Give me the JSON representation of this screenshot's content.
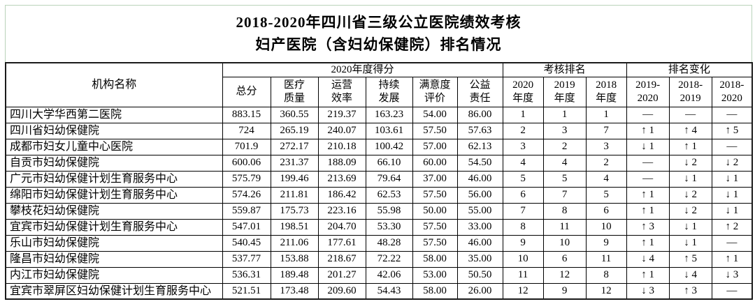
{
  "title": {
    "line1": "2018-2020年四川省三级公立医院绩效考核",
    "line2": "妇产医院（含妇幼保健院）排名情况"
  },
  "colors": {
    "title_border": "#b9d3ba",
    "table_border": "#000000",
    "text": "#000000"
  },
  "table": {
    "headers": {
      "org": "机构名称",
      "score_group": "2020年度得分",
      "rank_group": "考核排名",
      "change_group": "排名变化",
      "score_cols": [
        "总分",
        "医疗\n质量",
        "运营\n效率",
        "持续\n发展",
        "满意度\n评价",
        "公益\n责任"
      ],
      "rank_cols": [
        "2020\n年度",
        "2019\n年度",
        "2018\n年度"
      ],
      "change_cols": [
        "2019-\n2020",
        "2018-\n2019",
        "2018-\n2020"
      ]
    },
    "rows": [
      {
        "name": "四川大学华西第二医院",
        "scores": [
          "883.15",
          "360.55",
          "219.37",
          "163.23",
          "54.00",
          "86.00"
        ],
        "ranks": [
          "1",
          "1",
          "1"
        ],
        "changes": [
          "—",
          "—",
          "—"
        ]
      },
      {
        "name": "四川省妇幼保健院",
        "scores": [
          "724",
          "265.19",
          "240.07",
          "103.61",
          "57.50",
          "57.63"
        ],
        "ranks": [
          "2",
          "3",
          "7"
        ],
        "changes": [
          "↑ 1",
          "↑ 4",
          "↑ 5"
        ]
      },
      {
        "name": "成都市妇女儿童中心医院",
        "scores": [
          "701.9",
          "272.17",
          "210.18",
          "100.42",
          "57.00",
          "62.13"
        ],
        "ranks": [
          "3",
          "2",
          "3"
        ],
        "changes": [
          "↓ 1",
          "↑ 1",
          "—"
        ]
      },
      {
        "name": "自贡市妇幼保健院",
        "scores": [
          "600.06",
          "231.37",
          "188.09",
          "66.10",
          "60.00",
          "54.50"
        ],
        "ranks": [
          "4",
          "4",
          "2"
        ],
        "changes": [
          "—",
          "↓ 2",
          "↓ 2"
        ]
      },
      {
        "name": "广元市妇幼保健计划生育服务中心",
        "scores": [
          "575.79",
          "199.46",
          "213.69",
          "79.64",
          "37.00",
          "46.00"
        ],
        "ranks": [
          "5",
          "5",
          "4"
        ],
        "changes": [
          "—",
          "↓ 1",
          "↓ 1"
        ]
      },
      {
        "name": "绵阳市妇幼保健计划生育服务中心",
        "scores": [
          "574.26",
          "211.81",
          "186.42",
          "62.53",
          "57.50",
          "56.00"
        ],
        "ranks": [
          "6",
          "7",
          "5"
        ],
        "changes": [
          "↑ 1",
          "↓ 2",
          "↓ 1"
        ]
      },
      {
        "name": "攀枝花妇幼保健院",
        "scores": [
          "559.87",
          "175.73",
          "223.16",
          "55.98",
          "50.00",
          "55.00"
        ],
        "ranks": [
          "7",
          "8",
          "6"
        ],
        "changes": [
          "↑ 1",
          "↓ 2",
          "↓ 1"
        ]
      },
      {
        "name": "宜宾市妇幼保健计划生育服务中心",
        "scores": [
          "547.01",
          "198.51",
          "204.70",
          "53.30",
          "57.50",
          "33.00"
        ],
        "ranks": [
          "8",
          "11",
          "10"
        ],
        "changes": [
          "↑ 3",
          "↓ 1",
          "↑ 2"
        ]
      },
      {
        "name": "乐山市妇幼保健院",
        "scores": [
          "540.45",
          "211.06",
          "177.61",
          "48.28",
          "57.50",
          "46.00"
        ],
        "ranks": [
          "9",
          "10",
          "9"
        ],
        "changes": [
          "↑ 1",
          "↓ 1",
          "—"
        ]
      },
      {
        "name": "隆昌市妇幼保健院",
        "scores": [
          "537.77",
          "153.88",
          "218.67",
          "72.22",
          "58.00",
          "35.00"
        ],
        "ranks": [
          "10",
          "6",
          "11"
        ],
        "changes": [
          "↓ 4",
          "↑ 5",
          "↑ 1"
        ]
      },
      {
        "name": "内江市妇幼保健院",
        "scores": [
          "536.31",
          "189.48",
          "201.27",
          "42.06",
          "53.00",
          "50.50"
        ],
        "ranks": [
          "11",
          "12",
          "8"
        ],
        "changes": [
          "↑ 1",
          "↓ 4",
          "↓ 3"
        ]
      },
      {
        "name": "宜宾市翠屏区妇幼保健计划生育服务中心",
        "scores": [
          "521.51",
          "173.48",
          "209.60",
          "54.43",
          "58.00",
          "26.00"
        ],
        "ranks": [
          "12",
          "9",
          "12"
        ],
        "changes": [
          "↓ 3",
          "↑ 3",
          "—"
        ]
      }
    ]
  }
}
